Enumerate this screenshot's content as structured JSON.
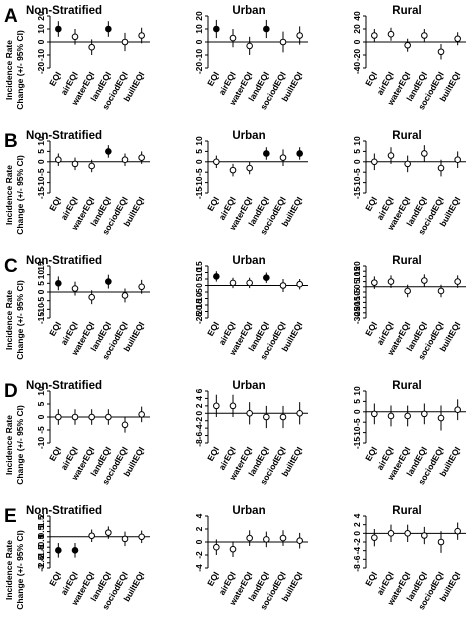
{
  "chart_data": {
    "type": "scatter",
    "rows": [
      {
        "letter": "A",
        "panels": [
          {
            "title": "Non-Stratified",
            "ylim": [
              -20,
              20
            ],
            "yticks": [
              20,
              10,
              0,
              -10,
              -20
            ],
            "ylabel_line1": "Incidence Rate",
            "ylabel_line2": "Change (+/- 95% CI)",
            "categories": [
              "EQI",
              "airEQI",
              "waterEQI",
              "landEQI",
              "sociodEQI",
              "builtEQI"
            ],
            "values": [
              10,
              4,
              -4,
              10,
              0,
              5
            ],
            "ci_low": [
              4,
              -2,
              -10,
              4,
              -7,
              -1
            ],
            "ci_high": [
              16,
              10,
              2,
              16,
              7,
              11
            ],
            "significant": [
              true,
              false,
              false,
              true,
              false,
              false
            ]
          },
          {
            "title": "Urban",
            "ylim": [
              -20,
              20
            ],
            "yticks": [
              20,
              10,
              0,
              -10,
              -20
            ],
            "ylabel_line1": "",
            "ylabel_line2": "",
            "categories": [
              "EQI",
              "airEQI",
              "waterEQI",
              "landEQI",
              "sociodEQI",
              "builtEQI"
            ],
            "values": [
              10,
              3,
              -3,
              10,
              0,
              5
            ],
            "ci_low": [
              3,
              -4,
              -10,
              3,
              -8,
              -2
            ],
            "ci_high": [
              17,
              10,
              4,
              17,
              8,
              12
            ],
            "significant": [
              true,
              false,
              false,
              true,
              false,
              false
            ]
          },
          {
            "title": "Rural",
            "ylim": [
              -40,
              40
            ],
            "yticks": [
              40,
              20,
              0,
              -20,
              -40
            ],
            "ylabel_line1": "",
            "ylabel_line2": "",
            "categories": [
              "EQI",
              "airEQI",
              "waterEQI",
              "landEQI",
              "sociodEQI",
              "builtEQI"
            ],
            "values": [
              10,
              12,
              -5,
              10,
              -15,
              5
            ],
            "ci_low": [
              0,
              2,
              -15,
              0,
              -27,
              -5
            ],
            "ci_high": [
              20,
              22,
              5,
              20,
              -3,
              15
            ],
            "significant": [
              false,
              false,
              false,
              false,
              false,
              false
            ]
          }
        ]
      },
      {
        "letter": "B",
        "panels": [
          {
            "title": "Non-Stratified",
            "ylim": [
              -15,
              10
            ],
            "yticks": [
              10,
              5,
              0,
              -5,
              -10,
              -15
            ],
            "ylabel_line1": "Incidence Rate",
            "ylabel_line2": "Change (+/- 95% CI)",
            "categories": [
              "EQI",
              "airEQI",
              "waterEQI",
              "landEQI",
              "sociodEQI",
              "builtEQI"
            ],
            "values": [
              1,
              -1,
              -2,
              5,
              1,
              2
            ],
            "ci_low": [
              -2,
              -4,
              -5,
              2,
              -2,
              -1
            ],
            "ci_high": [
              4,
              2,
              1,
              8,
              4,
              5
            ],
            "significant": [
              false,
              false,
              false,
              true,
              false,
              false
            ]
          },
          {
            "title": "Urban",
            "ylim": [
              -15,
              10
            ],
            "yticks": [
              10,
              5,
              0,
              -5,
              -10,
              -15
            ],
            "ylabel_line1": "",
            "ylabel_line2": "",
            "categories": [
              "EQI",
              "airEQI",
              "waterEQI",
              "landEQI",
              "sociodEQI",
              "builtEQI"
            ],
            "values": [
              0,
              -4,
              -3,
              4,
              2,
              4
            ],
            "ci_low": [
              -3,
              -7,
              -6,
              1,
              -2,
              1
            ],
            "ci_high": [
              3,
              -1,
              0,
              7,
              6,
              7
            ],
            "significant": [
              false,
              false,
              false,
              true,
              false,
              true
            ]
          },
          {
            "title": "Rural",
            "ylim": [
              -15,
              10
            ],
            "yticks": [
              10,
              5,
              0,
              -5,
              -10,
              -15
            ],
            "ylabel_line1": "",
            "ylabel_line2": "",
            "categories": [
              "EQI",
              "airEQI",
              "waterEQI",
              "landEQI",
              "sociodEQI",
              "builtEQI"
            ],
            "values": [
              0,
              3,
              -1,
              4,
              -3,
              1
            ],
            "ci_low": [
              -4,
              -1,
              -5,
              0,
              -7,
              -3
            ],
            "ci_high": [
              4,
              7,
              3,
              8,
              1,
              5
            ],
            "significant": [
              false,
              false,
              false,
              false,
              false,
              false
            ]
          }
        ]
      },
      {
        "letter": "C",
        "panels": [
          {
            "title": "Non-Stratified",
            "ylim": [
              -15,
              15
            ],
            "yticks": [
              15,
              10,
              5,
              0,
              -5,
              -10,
              -15
            ],
            "ylabel_line1": "Incidence Rate",
            "ylabel_line2": "Change (+/- 95% CI)",
            "categories": [
              "EQI",
              "airEQI",
              "waterEQI",
              "landEQI",
              "sociodEQI",
              "builtEQI"
            ],
            "values": [
              5,
              2,
              -3,
              6,
              -2,
              3
            ],
            "ci_low": [
              1,
              -2,
              -7,
              2,
              -6,
              -1
            ],
            "ci_high": [
              9,
              6,
              1,
              10,
              2,
              7
            ],
            "significant": [
              true,
              false,
              false,
              true,
              false,
              false
            ]
          },
          {
            "title": "Urban",
            "ylim": [
              -25,
              15
            ],
            "yticks": [
              15,
              10,
              5,
              0,
              -5,
              -10,
              -15,
              -20,
              -25
            ],
            "ylabel_line1": "",
            "ylabel_line2": "",
            "categories": [
              "EQI",
              "airEQI",
              "waterEQI",
              "landEQI",
              "sociodEQI",
              "builtEQI"
            ],
            "values": [
              7,
              2,
              2,
              6,
              0,
              1
            ],
            "ci_low": [
              3,
              -2,
              -2,
              2,
              -5,
              -3
            ],
            "ci_high": [
              11,
              6,
              6,
              10,
              5,
              5
            ],
            "significant": [
              true,
              false,
              false,
              true,
              false,
              false
            ]
          },
          {
            "title": "Rural",
            "ylim": [
              -30,
              20
            ],
            "yticks": [
              20,
              15,
              10,
              5,
              0,
              -5,
              -10,
              -15,
              -20,
              -25,
              -30
            ],
            "ylabel_line1": "",
            "ylabel_line2": "",
            "categories": [
              "EQI",
              "airEQI",
              "waterEQI",
              "landEQI",
              "sociodEQI",
              "builtEQI"
            ],
            "values": [
              4,
              5,
              -4,
              6,
              -4,
              5
            ],
            "ci_low": [
              -2,
              -1,
              -10,
              0,
              -10,
              -1
            ],
            "ci_high": [
              10,
              11,
              2,
              12,
              2,
              11
            ],
            "significant": [
              false,
              false,
              false,
              false,
              false,
              false
            ]
          }
        ]
      },
      {
        "letter": "D",
        "panels": [
          {
            "title": "Non-Stratified",
            "ylim": [
              -10,
              10
            ],
            "yticks": [
              10,
              5,
              0,
              -5,
              -10
            ],
            "ylabel_line1": "Incidence Rate",
            "ylabel_line2": "Change (+/- 95% CI)",
            "categories": [
              "EQI",
              "airEQI",
              "waterEQI",
              "landEQI",
              "sociodEQI",
              "builtEQI"
            ],
            "values": [
              0,
              0,
              0,
              0,
              -3,
              1
            ],
            "ci_low": [
              -3,
              -3,
              -3,
              -3,
              -6,
              -2
            ],
            "ci_high": [
              3,
              3,
              3,
              3,
              0,
              4
            ],
            "significant": [
              false,
              false,
              false,
              false,
              false,
              false
            ]
          },
          {
            "title": "Urban",
            "ylim": [
              -8,
              6
            ],
            "yticks": [
              6,
              4,
              2,
              0,
              -2,
              -4,
              -6,
              -8
            ],
            "ylabel_line1": "",
            "ylabel_line2": "",
            "categories": [
              "EQI",
              "airEQI",
              "waterEQI",
              "landEQI",
              "sociodEQI",
              "builtEQI"
            ],
            "values": [
              2,
              2,
              0,
              -1,
              -1,
              0
            ],
            "ci_low": [
              -1,
              -1,
              -3,
              -4,
              -4,
              -3
            ],
            "ci_high": [
              5,
              5,
              3,
              2,
              2,
              3
            ],
            "significant": [
              false,
              false,
              false,
              false,
              false,
              false
            ]
          },
          {
            "title": "Rural",
            "ylim": [
              -15,
              10
            ],
            "yticks": [
              10,
              5,
              0,
              -5,
              -10,
              -15
            ],
            "ylabel_line1": "",
            "ylabel_line2": "",
            "categories": [
              "EQI",
              "airEQI",
              "waterEQI",
              "landEQI",
              "sociodEQI",
              "builtEQI"
            ],
            "values": [
              -1,
              -2,
              -2,
              -1,
              -3,
              1
            ],
            "ci_low": [
              -6,
              -7,
              -7,
              -6,
              -9,
              -4
            ],
            "ci_high": [
              4,
              3,
              3,
              4,
              3,
              6
            ],
            "significant": [
              false,
              false,
              false,
              false,
              false,
              false
            ]
          }
        ]
      },
      {
        "letter": "E",
        "panels": [
          {
            "title": "Non-Stratified",
            "ylim": [
              -3,
              2
            ],
            "yticks": [
              2,
              1.5,
              1,
              0.5,
              0,
              -0.5,
              -1,
              -1.5,
              -2,
              -2.5,
              -3
            ],
            "ylabel_line1": "Incidence Rate",
            "ylabel_line2": "Change (+/- 95% CI)",
            "categories": [
              "EQI",
              "airEQI",
              "waterEQI",
              "landEQI",
              "sociodEQI",
              "builtEQI"
            ],
            "values": [
              -1.3,
              -1.3,
              0.1,
              0.4,
              -0.2,
              0.0
            ],
            "ci_low": [
              -2.0,
              -2.0,
              -0.5,
              -0.2,
              -0.9,
              -0.6
            ],
            "ci_high": [
              -0.6,
              -0.6,
              0.7,
              1.0,
              0.5,
              0.6
            ],
            "significant": [
              true,
              true,
              false,
              false,
              false,
              false
            ]
          },
          {
            "title": "Urban",
            "ylim": [
              -4,
              4
            ],
            "yticks": [
              4,
              2,
              0,
              -2,
              -4
            ],
            "ylabel_line1": "",
            "ylabel_line2": "",
            "categories": [
              "EQI",
              "airEQI",
              "waterEQI",
              "landEQI",
              "sociodEQI",
              "builtEQI"
            ],
            "values": [
              -0.8,
              -1.1,
              0.6,
              0.4,
              0.6,
              0.2
            ],
            "ci_low": [
              -2.0,
              -2.3,
              -0.6,
              -0.8,
              -0.6,
              -1.0
            ],
            "ci_high": [
              0.4,
              0.1,
              1.8,
              1.6,
              1.8,
              1.4
            ],
            "significant": [
              false,
              false,
              false,
              false,
              false,
              false
            ]
          },
          {
            "title": "Rural",
            "ylim": [
              -8,
              4
            ],
            "yticks": [
              4,
              2,
              0,
              -2,
              -4,
              -6,
              -8
            ],
            "ylabel_line1": "",
            "ylabel_line2": "",
            "categories": [
              "EQI",
              "airEQI",
              "waterEQI",
              "landEQI",
              "sociodEQI",
              "builtEQI"
            ],
            "values": [
              -1,
              0,
              0,
              -0.5,
              -2,
              0.5
            ],
            "ci_low": [
              -3,
              -2,
              -2,
              -2.5,
              -4.5,
              -1.5
            ],
            "ci_high": [
              1,
              2,
              2,
              1.5,
              0.5,
              2.5
            ],
            "significant": [
              false,
              false,
              false,
              false,
              false,
              false
            ]
          }
        ]
      }
    ],
    "marker_fill_significant": "#000000",
    "marker_fill_nonsignificant": "#ffffff",
    "grid": false
  }
}
